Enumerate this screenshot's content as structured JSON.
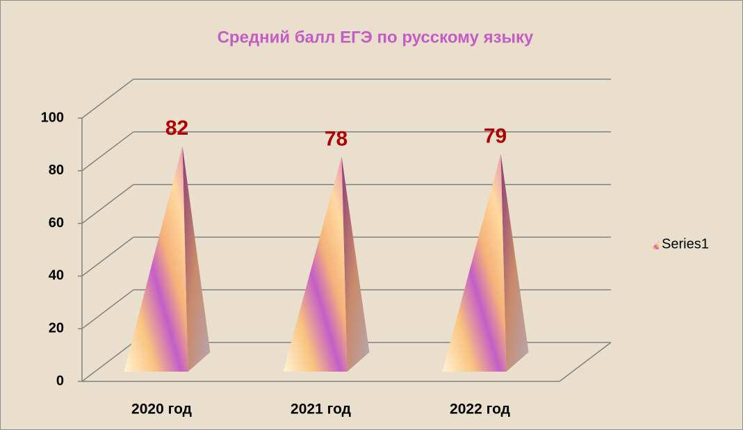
{
  "chart_data": {
    "type": "pyramid3d",
    "title": "Средний балл ЕГЭ по русскому языку",
    "categories": [
      "2020 год",
      "2021 год",
      "2022 год"
    ],
    "series": [
      {
        "name": "Series1",
        "color": "#f7b97a",
        "values": [
          82,
          78,
          79
        ]
      }
    ],
    "ylim": [
      0,
      100
    ],
    "yticks": [
      0,
      20,
      40,
      60,
      80,
      100
    ],
    "grid": true,
    "legend": "right"
  }
}
